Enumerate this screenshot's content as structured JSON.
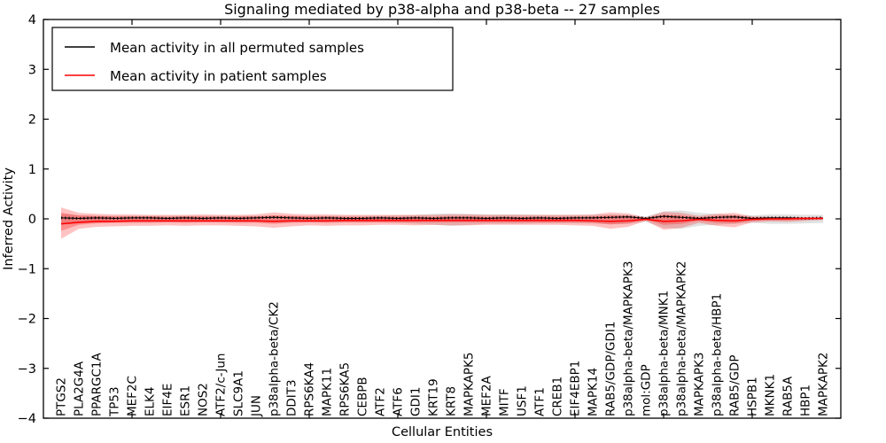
{
  "chart_data": {
    "type": "line",
    "title": "Signaling mediated by p38-alpha and p38-beta -- 27 samples",
    "xlabel": "Cellular Entities",
    "ylabel": "Inferred Activity",
    "ylim": [
      -4,
      4
    ],
    "grid": false,
    "legend_position": "upper left",
    "yticks": {
      "values": [
        4,
        3,
        2,
        1,
        0,
        -1,
        -2,
        -3,
        -4
      ],
      "labels": [
        "4",
        "3",
        "2",
        "1",
        "0",
        "−1",
        "−2",
        "−3",
        "−4"
      ]
    },
    "xticks_numeric": [
      5,
      10,
      15,
      20,
      25,
      30,
      35,
      40
    ],
    "legend": [
      {
        "label": "Mean activity in all permuted samples",
        "color": "#000000"
      },
      {
        "label": "Mean activity in patient samples",
        "color": "#ff0000"
      }
    ],
    "categories": [
      "PTGS2",
      "PLA2G4A",
      "PPARGC1A",
      "TP53",
      "MEF2C",
      "ELK4",
      "EIF4E",
      "ESR1",
      "NOS2",
      "ATF2/c-Jun",
      "SLC9A1",
      "JUN",
      "p38alpha-beta/CK2",
      "DDIT3",
      "RPS6KA4",
      "MAPK11",
      "RPS6KA5",
      "CEBPB",
      "ATF2",
      "ATF6",
      "GDI1",
      "KRT19",
      "KRT8",
      "MAPKAPK5",
      "MEF2A",
      "MITF",
      "USF1",
      "ATF1",
      "CREB1",
      "EIF4EBP1",
      "MAPK14",
      "RAB5/GDP/GDI1",
      "p38alpha-beta/MAPKAPK3",
      "mol:GDP",
      "p38alpha-beta/MNK1",
      "p38alpha-beta/MAPKAPK2",
      "MAPKAPK3",
      "p38alpha-beta/HBP1",
      "RAB5/GDP",
      "HSPB1",
      "MKNK1",
      "RAB5A",
      "HBP1",
      "MAPKAPK2"
    ],
    "series": [
      {
        "name": "Mean activity in all permuted samples",
        "color": "#000000",
        "values": [
          0.02,
          0.01,
          0.02,
          0.01,
          0.02,
          0.02,
          0.01,
          0.02,
          0.01,
          0.02,
          0.01,
          0.02,
          0.03,
          0.02,
          0.01,
          0.02,
          0.01,
          0.01,
          0.02,
          0.01,
          0.02,
          0.01,
          0.02,
          0.02,
          0.01,
          0.02,
          0.01,
          0.02,
          0.01,
          0.02,
          0.02,
          0.03,
          0.04,
          0.01,
          0.05,
          0.03,
          0.01,
          0.03,
          0.04,
          0.01,
          0.02,
          0.02,
          0.01,
          0.02
        ]
      },
      {
        "name": "Mean activity in patient samples",
        "color": "#ff0000",
        "values": [
          -0.1,
          -0.07,
          -0.05,
          -0.05,
          -0.04,
          -0.04,
          -0.04,
          -0.04,
          -0.04,
          -0.04,
          -0.04,
          -0.04,
          -0.05,
          -0.04,
          -0.04,
          -0.04,
          -0.03,
          -0.03,
          -0.03,
          -0.03,
          -0.03,
          -0.03,
          -0.03,
          -0.03,
          -0.03,
          -0.03,
          -0.03,
          -0.03,
          -0.03,
          -0.03,
          -0.04,
          -0.05,
          -0.04,
          -0.01,
          -0.05,
          -0.04,
          -0.01,
          -0.03,
          -0.04,
          -0.01,
          0.0,
          0.0,
          0.01,
          0.01
        ]
      }
    ],
    "bands": {
      "gray": {
        "color": "#a9a9a9",
        "opacity": 0.35,
        "upper": [
          0.1,
          0.07,
          0.06,
          0.06,
          0.06,
          0.06,
          0.06,
          0.06,
          0.06,
          0.06,
          0.06,
          0.06,
          0.07,
          0.06,
          0.06,
          0.06,
          0.06,
          0.06,
          0.06,
          0.07,
          0.08,
          0.1,
          0.11,
          0.1,
          0.09,
          0.09,
          0.09,
          0.08,
          0.08,
          0.08,
          0.08,
          0.09,
          0.08,
          0.05,
          0.15,
          0.17,
          0.12,
          0.1,
          0.08,
          0.07,
          0.09,
          0.09,
          0.08,
          0.08
        ],
        "lower": [
          -0.12,
          -0.09,
          -0.08,
          -0.07,
          -0.07,
          -0.07,
          -0.07,
          -0.07,
          -0.07,
          -0.07,
          -0.07,
          -0.07,
          -0.08,
          -0.07,
          -0.07,
          -0.07,
          -0.07,
          -0.07,
          -0.07,
          -0.08,
          -0.1,
          -0.12,
          -0.14,
          -0.12,
          -0.1,
          -0.1,
          -0.1,
          -0.09,
          -0.09,
          -0.09,
          -0.09,
          -0.11,
          -0.1,
          -0.06,
          -0.18,
          -0.2,
          -0.14,
          -0.12,
          -0.1,
          -0.08,
          -0.1,
          -0.1,
          -0.09,
          -0.08
        ]
      },
      "red_outer": {
        "color": "#ff0000",
        "opacity": 0.24,
        "upper": [
          0.23,
          0.12,
          0.1,
          0.09,
          0.09,
          0.08,
          0.08,
          0.08,
          0.09,
          0.08,
          0.08,
          0.09,
          0.13,
          0.1,
          0.09,
          0.09,
          0.08,
          0.08,
          0.08,
          0.08,
          0.08,
          0.08,
          0.09,
          0.09,
          0.08,
          0.08,
          0.08,
          0.08,
          0.08,
          0.08,
          0.09,
          0.13,
          0.11,
          0.03,
          0.14,
          0.12,
          0.06,
          0.1,
          0.12,
          0.05,
          0.04,
          0.04,
          0.03,
          0.02
        ],
        "lower": [
          -0.4,
          -0.2,
          -0.16,
          -0.15,
          -0.14,
          -0.14,
          -0.13,
          -0.14,
          -0.13,
          -0.13,
          -0.14,
          -0.15,
          -0.18,
          -0.15,
          -0.13,
          -0.14,
          -0.13,
          -0.13,
          -0.12,
          -0.12,
          -0.13,
          -0.12,
          -0.13,
          -0.13,
          -0.12,
          -0.12,
          -0.12,
          -0.12,
          -0.12,
          -0.13,
          -0.14,
          -0.2,
          -0.16,
          -0.04,
          -0.22,
          -0.18,
          -0.08,
          -0.14,
          -0.17,
          -0.07,
          -0.05,
          -0.06,
          -0.04,
          -0.02
        ]
      },
      "red_inner": {
        "color": "#ff0000",
        "opacity": 0.27,
        "upper": [
          0.12,
          0.07,
          0.06,
          0.05,
          0.05,
          0.05,
          0.04,
          0.05,
          0.05,
          0.04,
          0.05,
          0.05,
          0.07,
          0.06,
          0.05,
          0.05,
          0.04,
          0.04,
          0.04,
          0.04,
          0.04,
          0.04,
          0.05,
          0.05,
          0.04,
          0.04,
          0.04,
          0.04,
          0.04,
          0.04,
          0.05,
          0.07,
          0.06,
          0.02,
          0.08,
          0.07,
          0.03,
          0.06,
          0.07,
          0.03,
          0.02,
          0.02,
          0.02,
          0.01
        ],
        "lower": [
          -0.24,
          -0.12,
          -0.09,
          -0.08,
          -0.08,
          -0.08,
          -0.07,
          -0.08,
          -0.07,
          -0.07,
          -0.08,
          -0.08,
          -0.1,
          -0.08,
          -0.07,
          -0.08,
          -0.07,
          -0.07,
          -0.07,
          -0.07,
          -0.07,
          -0.07,
          -0.07,
          -0.07,
          -0.07,
          -0.07,
          -0.07,
          -0.07,
          -0.07,
          -0.07,
          -0.08,
          -0.11,
          -0.09,
          -0.02,
          -0.12,
          -0.1,
          -0.04,
          -0.08,
          -0.09,
          -0.04,
          -0.03,
          -0.03,
          -0.02,
          -0.01
        ]
      }
    },
    "colors": {
      "frame": "#000000",
      "background": "#ffffff"
    }
  }
}
